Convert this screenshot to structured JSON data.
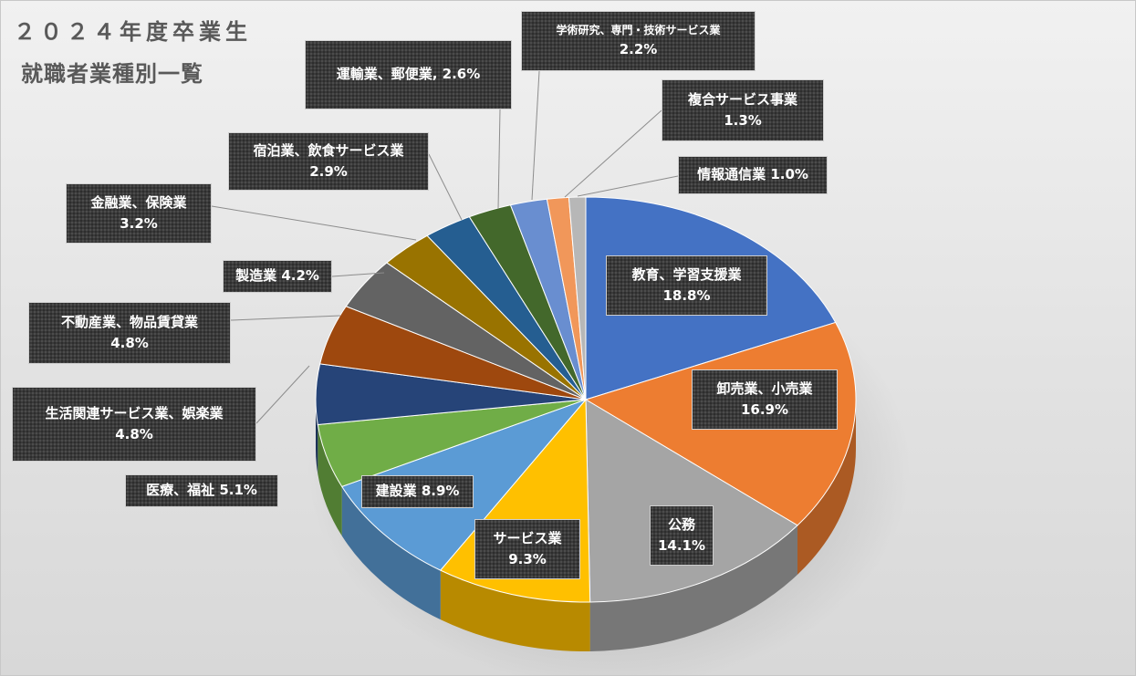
{
  "chart_data": {
    "type": "pie",
    "title": "２０２４年度卒業生",
    "subtitle": "就職者業種別一覧",
    "slices": [
      {
        "category": "教育、学習支援業",
        "value": 18.8,
        "label": "18.8%",
        "color": "#4472C4"
      },
      {
        "category": "卸売業、小売業",
        "value": 16.9,
        "label": "16.9%",
        "color": "#ED7D31"
      },
      {
        "category": "公務",
        "value": 14.1,
        "label": "14.1%",
        "color": "#A5A5A5"
      },
      {
        "category": "サービス業",
        "value": 9.3,
        "label": "9.3%",
        "color": "#FFC000"
      },
      {
        "category": "建設業",
        "value": 8.9,
        "label": "8.9%",
        "color": "#5B9BD5"
      },
      {
        "category": "医療、福祉",
        "value": 5.1,
        "label": "5.1%",
        "color": "#70AD47"
      },
      {
        "category": "生活関連サービス業、娯楽業",
        "value": 4.8,
        "label": "4.8%",
        "color": "#264478"
      },
      {
        "category": "不動産業、物品賃貸業",
        "value": 4.8,
        "label": "4.8%",
        "color": "#9E480E"
      },
      {
        "category": "製造業",
        "value": 4.2,
        "label": "4.2%",
        "color": "#636363"
      },
      {
        "category": "金融業、保険業",
        "value": 3.2,
        "label": "3.2%",
        "color": "#997300"
      },
      {
        "category": "宿泊業、飲食サービス業",
        "value": 2.9,
        "label": "2.9%",
        "color": "#255E91"
      },
      {
        "category": "運輸業、郵便業",
        "value": 2.6,
        "label": "2.6%",
        "color": "#43682B"
      },
      {
        "category": "学術研究、専門・技術サービス業",
        "value": 2.2,
        "label": "2.2%",
        "color": "#698ED0"
      },
      {
        "category": "複合サービス事業",
        "value": 1.3,
        "label": "1.3%",
        "color": "#F1975A"
      },
      {
        "category": "情報通信業",
        "value": 1.0,
        "label": "1.0%",
        "color": "#B7B7B7"
      }
    ]
  }
}
